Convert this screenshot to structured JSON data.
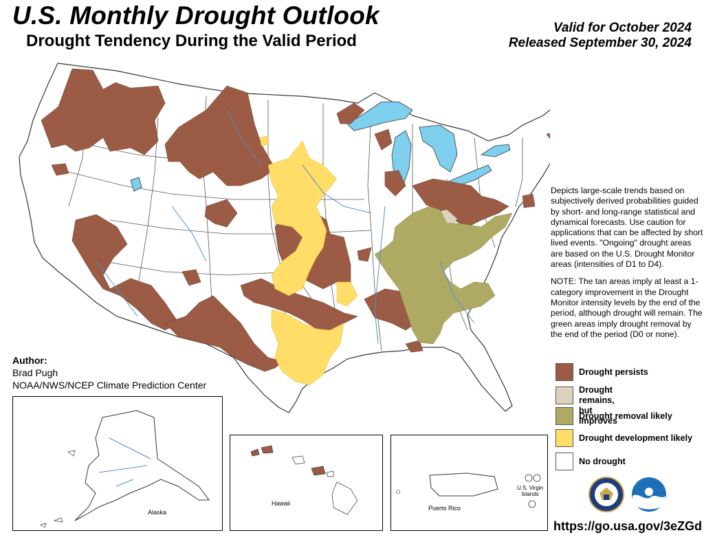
{
  "header": {
    "title": "U.S. Monthly Drought Outlook",
    "subtitle": "Drought Tendency During the Valid Period",
    "valid": "Valid for October 2024",
    "released": "Released September 30, 2024"
  },
  "description": {
    "para1": "Depicts large-scale trends based on subjectively derived probabilities guided by short- and long-range statistical and dynamical forecasts. Use caution for applications that can be affected by short lived events. \"Ongoing\" drought areas are based on the U.S. Drought Monitor areas (intensities of D1 to D4).",
    "para2": "NOTE: The tan areas imply at least a 1-category improvement in the Drought Monitor intensity levels by the end of the period, although drought will remain. The green areas imply drought removal by the end of the period (D0 or none)."
  },
  "author": {
    "label": "Author:",
    "name": "Brad Pugh",
    "org": "NOAA/NWS/NCEP Climate Prediction Center"
  },
  "legend": [
    {
      "label": "Drought persists",
      "color": "#9c5b45"
    },
    {
      "label": "Drought remains,\nbut improves",
      "color": "#ddd2bd"
    },
    {
      "label": "Drought removal likely",
      "color": "#afaa63"
    },
    {
      "label": "Drought development likely",
      "color": "#ffdd66"
    },
    {
      "label": "No drought",
      "color": "#ffffff"
    }
  ],
  "insets": {
    "alaska": "Alaska",
    "hawaii": "Hawaii",
    "puerto_rico": "Puerto Rico",
    "virgin_islands": "U.S. Virgin\nIslands"
  },
  "footer": {
    "url": "https://go.usa.gov/3eZGd"
  },
  "colors": {
    "persists": "#9c5b45",
    "improves": "#ddd2bd",
    "removal": "#afaa63",
    "development": "#ffdd66",
    "water": "#7fcfef",
    "border": "#333333"
  },
  "icons": [
    "doc-seal-icon",
    "noaa-logo-icon"
  ]
}
